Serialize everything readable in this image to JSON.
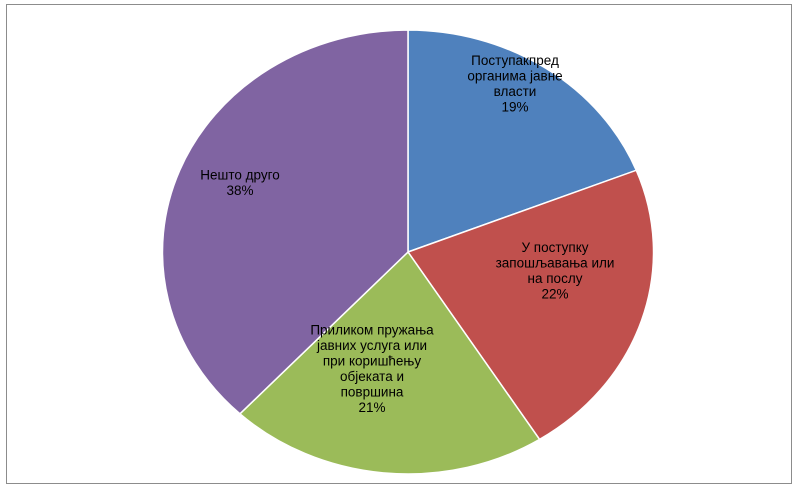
{
  "chart_data": {
    "type": "pie",
    "title": "",
    "legend": "none",
    "slices": [
      {
        "label_lines": [
          "Поступакпред",
          "органима јавне",
          "власти"
        ],
        "percent_label": "19%",
        "value": 19,
        "color": "#4f81bd"
      },
      {
        "label_lines": [
          "У поступку",
          "запошљавања или",
          "на послу"
        ],
        "percent_label": "22%",
        "value": 22,
        "color": "#c0504d"
      },
      {
        "label_lines": [
          "Приликом пружања",
          "јавних услуга или",
          "при коришћењу",
          "објеката и",
          "површина"
        ],
        "percent_label": "21%",
        "value": 21,
        "color": "#9bbb59"
      },
      {
        "label_lines": [
          "Нешто друго"
        ],
        "percent_label": "38%",
        "value": 38,
        "color": "#8064a2"
      }
    ]
  }
}
